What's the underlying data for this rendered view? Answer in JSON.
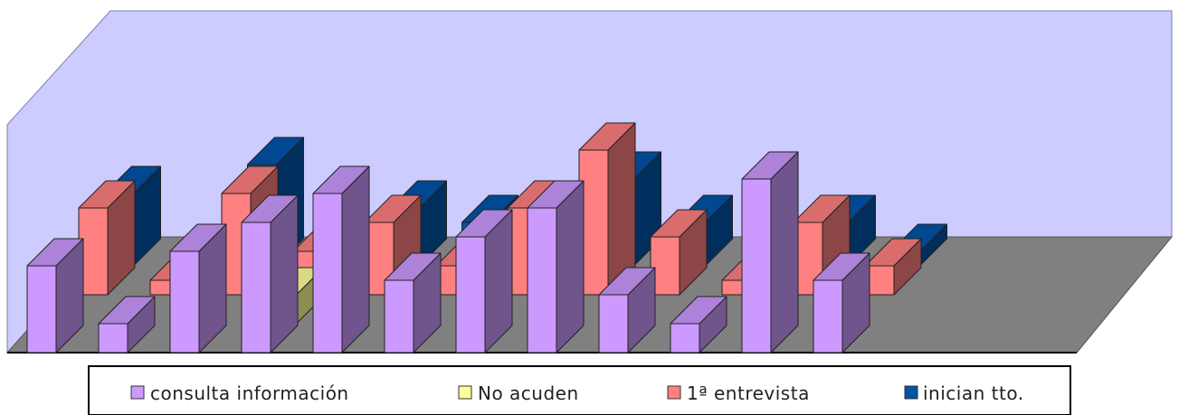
{
  "chart_data": {
    "type": "bar",
    "title": "",
    "xlabel": "",
    "ylabel": "",
    "categories": [
      "",
      "",
      "",
      "",
      "",
      "",
      "",
      "",
      "",
      "",
      "",
      ""
    ],
    "ylim": [
      0,
      12
    ],
    "grid": false,
    "legend_placement": "bottom",
    "series": [
      {
        "name": "consulta información",
        "color": "#cc99ff",
        "values": [
          3,
          1,
          3.5,
          4.5,
          5.5,
          2.5,
          4,
          5,
          2,
          1,
          6,
          2.5
        ]
      },
      {
        "name": "No acuden",
        "color": "#ffff99",
        "values": [
          0,
          0,
          0,
          1,
          0,
          0,
          0,
          0,
          0,
          0,
          0,
          0
        ]
      },
      {
        "name": "1ª entrevista",
        "color": "#ff8080",
        "values": [
          3,
          0.5,
          3.5,
          1.5,
          2.5,
          1,
          3,
          5,
          2,
          0.5,
          2.5,
          1
        ]
      },
      {
        "name": "inician tto.",
        "color": "#0055aa",
        "values": [
          2.5,
          0,
          3.5,
          0,
          2,
          1.5,
          1.5,
          3,
          1.5,
          0,
          1.5,
          0.5
        ]
      }
    ]
  },
  "legend": {
    "items": [
      {
        "label": "consulta información",
        "color": "#cc99ff"
      },
      {
        "label": "No acuden",
        "color": "#ffff99"
      },
      {
        "label": "1ª entrevista",
        "color": "#ff8080"
      },
      {
        "label": "inician tto.",
        "color": "#0055aa"
      }
    ]
  },
  "colors": {
    "wall": "#ccccff",
    "floor": "#808080",
    "legend_border": "#000000"
  }
}
